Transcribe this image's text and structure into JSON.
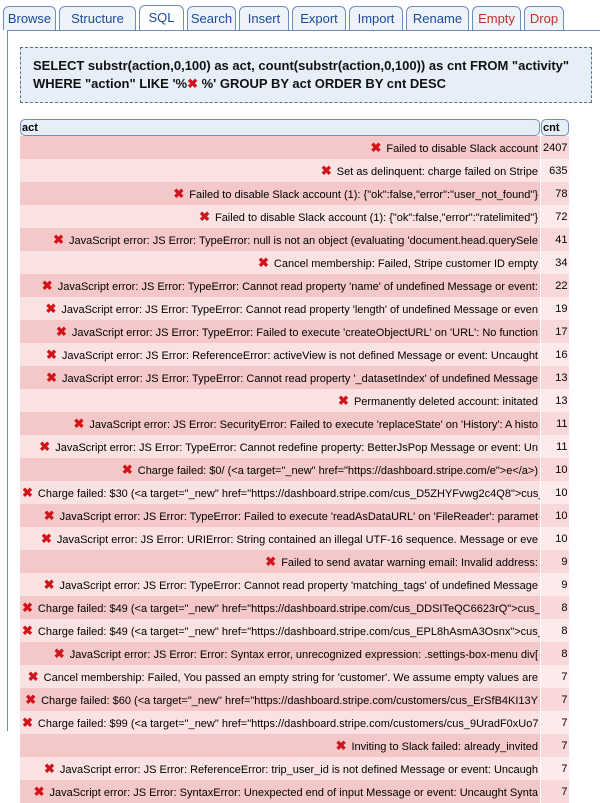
{
  "tabs": [
    {
      "label": "Browse"
    },
    {
      "label": "Structure"
    },
    {
      "label": "SQL",
      "active": true
    },
    {
      "label": "Search"
    },
    {
      "label": "Insert"
    },
    {
      "label": "Export"
    },
    {
      "label": "Import"
    },
    {
      "label": "Rename"
    },
    {
      "label": "Empty",
      "danger": true
    },
    {
      "label": "Drop",
      "danger": true
    }
  ],
  "query": {
    "line1": "SELECT substr(action,0,100) as act, count(substr(action,0,100)) as cnt FROM \"activity\"",
    "line2_a": "WHERE \"action\" LIKE '%",
    "line2_icon": "red-x-icon",
    "line2_b": " %' GROUP BY act ORDER BY cnt DESC"
  },
  "table": {
    "columns": [
      "act",
      "cnt"
    ],
    "rows": [
      {
        "act": "Failed to disable Slack account",
        "cnt": "2407"
      },
      {
        "act": "Set as delinquent: charge failed on Stripe",
        "cnt": "635"
      },
      {
        "act": "Failed to disable Slack account (1): {\"ok\":false,\"error\":\"user_not_found\"}",
        "cnt": "78"
      },
      {
        "act": "Failed to disable Slack account (1): {\"ok\":false,\"error\":\"ratelimited\"}",
        "cnt": "72"
      },
      {
        "act": "JavaScript error: JS Error: TypeError: null is not an object (evaluating 'document.head.querySele",
        "cnt": "41"
      },
      {
        "act": "Cancel membership: Failed, Stripe customer ID empty",
        "cnt": "34"
      },
      {
        "act": "JavaScript error: JS Error: TypeError: Cannot read property 'name' of undefined Message or event:",
        "cnt": "22"
      },
      {
        "act": "JavaScript error: JS Error: TypeError: Cannot read property 'length' of undefined Message or even",
        "cnt": "19"
      },
      {
        "act": "JavaScript error: JS Error: TypeError: Failed to execute 'createObjectURL' on 'URL': No function",
        "cnt": "17"
      },
      {
        "act": "JavaScript error: JS Error: ReferenceError: activeView is not defined Message or event: Uncaught",
        "cnt": "16"
      },
      {
        "act": "JavaScript error: JS Error: TypeError: Cannot read property '_datasetIndex' of undefined Message",
        "cnt": "13"
      },
      {
        "act": "Permanently deleted account: initated",
        "cnt": "13"
      },
      {
        "act": "JavaScript error: JS Error: SecurityError: Failed to execute 'replaceState' on 'History': A histo",
        "cnt": "11"
      },
      {
        "act": "JavaScript error: JS Error: TypeError: Cannot redefine property: BetterJsPop Message or event: Un",
        "cnt": "11"
      },
      {
        "act": "Charge failed: $0/ (<a target=\"_new\" href=\"https://dashboard.stripe.com/e\">e</a>)",
        "cnt": "10"
      },
      {
        "act": "Charge failed: $30 (<a target=\"_new\" href=\"https://dashboard.stripe.com/cus_D5ZHYFvwg2c4Q8\">cus_D",
        "cnt": "10"
      },
      {
        "act": "JavaScript error: JS Error: TypeError: Failed to execute 'readAsDataURL' on 'FileReader': paramet",
        "cnt": "10"
      },
      {
        "act": "JavaScript error: JS Error: URIError: String contained an illegal UTF-16 sequence. Message or eve",
        "cnt": "10"
      },
      {
        "act": "Failed to send avatar warning email: Invalid address:",
        "cnt": "9"
      },
      {
        "act": "JavaScript error: JS Error: TypeError: Cannot read property 'matching_tags' of undefined Message",
        "cnt": "9"
      },
      {
        "act": "Charge failed: $49 (<a target=\"_new\" href=\"https://dashboard.stripe.com/cus_DDSITeQC6623rQ\">cus_D",
        "cnt": "8"
      },
      {
        "act": "Charge failed: $49 (<a target=\"_new\" href=\"https://dashboard.stripe.com/cus_EPL8hAsmA3Osnx\">cus_E",
        "cnt": "8"
      },
      {
        "act": "JavaScript error: JS Error: Error: Syntax error, unrecognized expression: .settings-box-menu div[",
        "cnt": "8"
      },
      {
        "act": "Cancel membership: Failed, You passed an empty string for 'customer'. We assume empty values are",
        "cnt": "7"
      },
      {
        "act": "Charge failed: $60 (<a target=\"_new\" href=\"https://dashboard.stripe.com/customers/cus_ErSfB4KI13Y",
        "cnt": "7"
      },
      {
        "act": "Charge failed: $99 (<a target=\"_new\" href=\"https://dashboard.stripe.com/customers/cus_9UradF0xUo7",
        "cnt": "7"
      },
      {
        "act": "Inviting to Slack failed: already_invited",
        "cnt": "7"
      },
      {
        "act": "JavaScript error: JS Error: ReferenceError: trip_user_id is not defined Message or event: Uncaugh",
        "cnt": "7"
      },
      {
        "act": "JavaScript error: JS Error: SyntaxError: Unexpected end of input Message or event: Uncaught Synta",
        "cnt": "7"
      }
    ]
  },
  "colors": {
    "row_dark": "#f4c8c8",
    "row_light": "#fbe2e2",
    "x_icon": "#d0141a",
    "tab_border": "#6a8fc0"
  }
}
